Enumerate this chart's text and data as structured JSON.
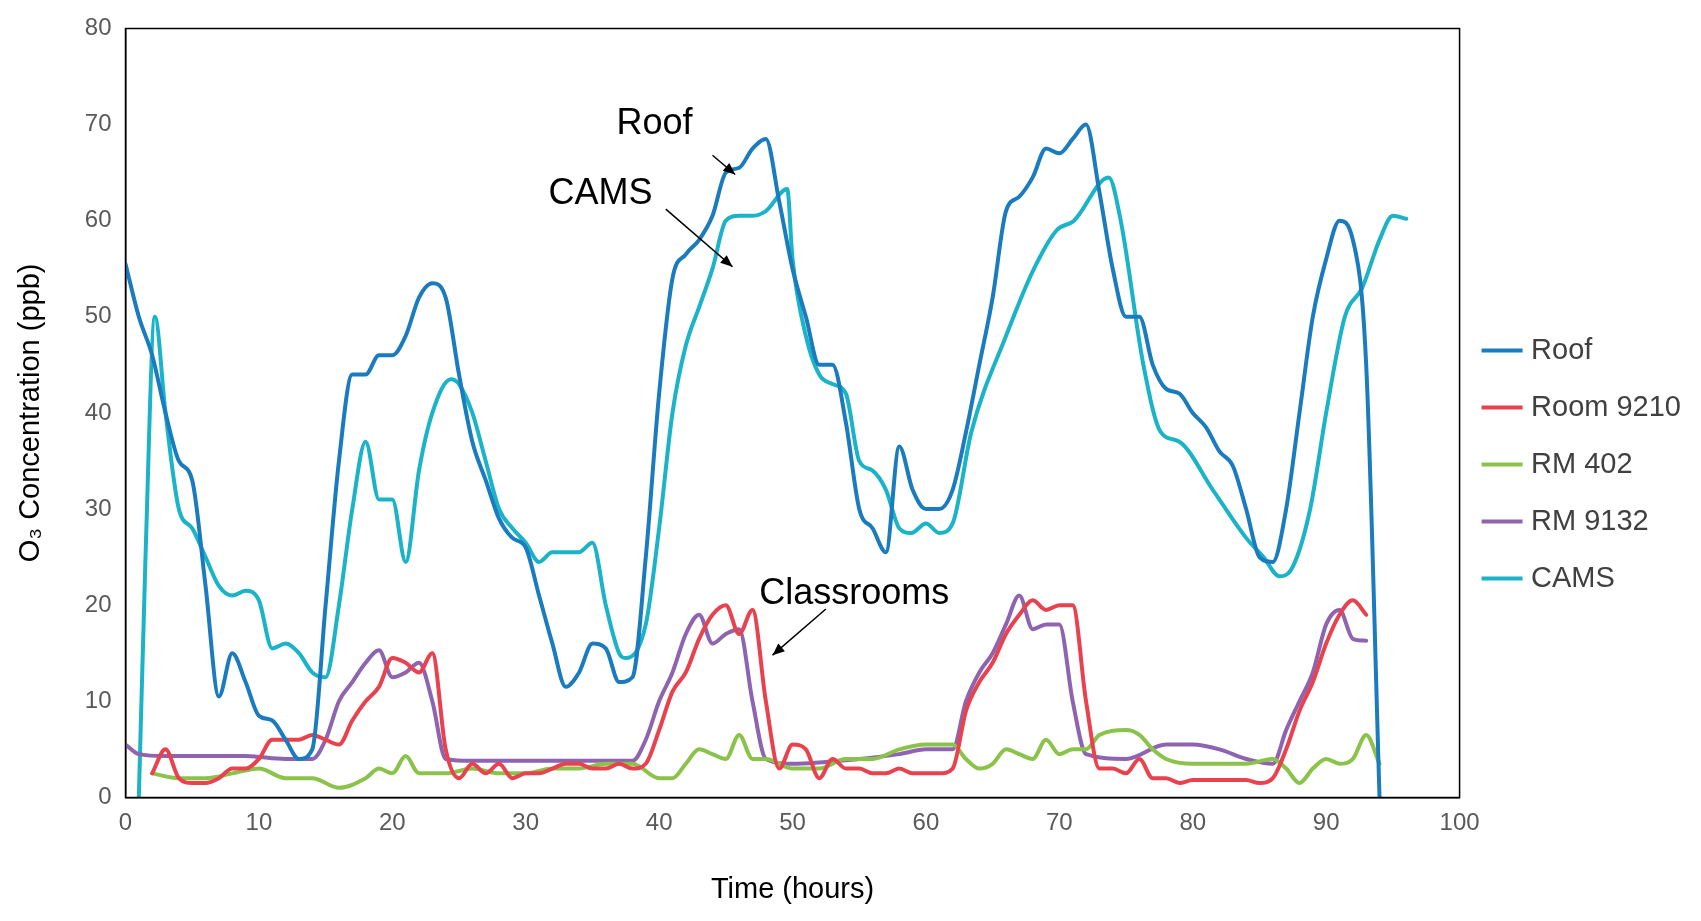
{
  "chart_data": {
    "type": "line",
    "xlabel": "Time (hours)",
    "ylabel": "O₃ Concentration (ppb)",
    "xlim": [
      0,
      100
    ],
    "xticks": [
      0,
      10,
      20,
      30,
      40,
      50,
      60,
      70,
      80,
      90,
      100
    ],
    "ylim": [
      0,
      80
    ],
    "yticks": [
      0,
      10,
      20,
      30,
      40,
      50,
      60,
      70,
      80
    ],
    "grid": false,
    "legend": "right",
    "marker": "none",
    "line_style": "solid",
    "annotations": [
      "Roof",
      "CAMS",
      "Classrooms"
    ],
    "series": [
      {
        "name": "Roof",
        "color": "#1a7bbf",
        "x": [
          0,
          1,
          2,
          3,
          4,
          5,
          6,
          7,
          8,
          9,
          10,
          11,
          12,
          13,
          14,
          15,
          16,
          17,
          18,
          19,
          20,
          21,
          22,
          23,
          24,
          25,
          26,
          27,
          28,
          29,
          30,
          31,
          32,
          33,
          34,
          35,
          36,
          37,
          38,
          39,
          40,
          41,
          42,
          43,
          44,
          45,
          46,
          47,
          48,
          49,
          50,
          51,
          52,
          53,
          54,
          55,
          56,
          57,
          58,
          59,
          60,
          61,
          62,
          63,
          64,
          65,
          66,
          67,
          68,
          69,
          70,
          71,
          72,
          73,
          74,
          75,
          76,
          77,
          78,
          79,
          80,
          81,
          82,
          83,
          84,
          85,
          86,
          87,
          88,
          89,
          90,
          91,
          92,
          93,
          94
        ],
        "values": [
          55.5,
          50,
          46,
          40,
          35,
          33,
          22,
          10.5,
          15,
          12,
          8.5,
          8,
          6,
          4,
          5,
          20,
          35,
          44,
          44,
          46,
          46,
          48,
          52,
          53.5,
          52,
          44,
          37,
          33,
          29,
          27,
          26,
          21,
          16,
          11.5,
          13,
          16,
          15.5,
          12,
          12.5,
          25,
          42,
          54,
          56.5,
          58,
          60.5,
          65,
          65.5,
          67.5,
          68.5,
          62,
          55,
          50,
          45,
          45,
          39,
          30,
          28,
          25.5,
          36.5,
          32,
          30,
          30,
          32,
          38,
          45,
          52,
          61,
          62.5,
          64.5,
          67.5,
          67,
          68.5,
          70,
          63,
          55,
          50,
          50,
          45,
          42.5,
          42,
          40,
          38.5,
          36,
          34.5,
          30,
          25,
          24.5,
          30,
          40,
          50,
          56,
          60,
          58,
          45,
          0
        ]
      },
      {
        "name": "Room 9210",
        "color": "#e8424f",
        "x": [
          2,
          3,
          4,
          5,
          6,
          7,
          8,
          9,
          10,
          11,
          12,
          13,
          14,
          15,
          16,
          17,
          18,
          19,
          20,
          21,
          22,
          23,
          24,
          25,
          26,
          27,
          28,
          29,
          30,
          31,
          32,
          33,
          34,
          35,
          36,
          37,
          38,
          39,
          40,
          41,
          42,
          43,
          44,
          45,
          46,
          47,
          48,
          49,
          50,
          51,
          52,
          53,
          54,
          55,
          56,
          57,
          58,
          59,
          60,
          61,
          62,
          63,
          64,
          65,
          66,
          67,
          68,
          69,
          70,
          71,
          72,
          73,
          74,
          75,
          76,
          77,
          78,
          79,
          80,
          81,
          82,
          83,
          84,
          85,
          86,
          87,
          88,
          89,
          90,
          91,
          92,
          93
        ],
        "values": [
          2.5,
          5,
          2,
          1.5,
          1.5,
          2,
          3,
          3,
          4,
          6,
          6,
          6,
          6.5,
          6,
          5.5,
          8,
          10,
          11.5,
          14.5,
          14,
          13,
          15,
          5,
          2,
          3.5,
          2.5,
          3.5,
          2,
          2.5,
          2.5,
          3,
          3.5,
          3.5,
          3,
          3,
          3.5,
          3,
          3.5,
          7,
          11,
          13,
          16.5,
          19,
          20,
          17,
          19.5,
          10,
          3,
          5.5,
          5,
          2,
          4,
          3,
          3,
          2.5,
          2.5,
          3,
          2.5,
          2.5,
          2.5,
          3,
          9,
          12,
          14,
          17,
          19,
          20.5,
          19.5,
          20,
          20,
          10,
          3,
          3,
          2.5,
          4,
          2,
          2,
          1.5,
          1.8,
          1.8,
          1.8,
          1.8,
          1.8,
          1.5,
          2,
          5,
          9,
          12,
          16,
          19,
          20.5,
          19
        ]
      },
      {
        "name": "RM 402",
        "color": "#8bc34a",
        "x": [
          2,
          4,
          6,
          8,
          10,
          12,
          14,
          16,
          18,
          19,
          20,
          21,
          22,
          24,
          26,
          28,
          30,
          32,
          34,
          36,
          38,
          40,
          41,
          42,
          43,
          44,
          45,
          46,
          47,
          48,
          50,
          52,
          54,
          56,
          58,
          60,
          62,
          63,
          64,
          65,
          66,
          67,
          68,
          69,
          70,
          71,
          72,
          73,
          75,
          76,
          77,
          78,
          80,
          82,
          84,
          86,
          87,
          88,
          89,
          90,
          91,
          92,
          93,
          94
        ],
        "values": [
          2.5,
          2,
          2,
          2.5,
          3,
          2,
          2,
          1,
          2,
          3,
          2.5,
          4.3,
          2.5,
          2.5,
          3,
          2.5,
          2.5,
          3,
          3,
          3.5,
          3.5,
          2,
          2,
          3.5,
          5,
          4.5,
          4,
          6.5,
          4,
          4,
          3,
          3,
          4,
          4,
          5,
          5.5,
          5.5,
          4,
          3,
          3.5,
          5,
          4.5,
          4,
          6,
          4.5,
          5,
          5,
          6.5,
          7,
          6.5,
          5,
          4,
          3.5,
          3.5,
          3.5,
          4,
          3,
          1.5,
          3,
          4,
          3.5,
          4,
          6.5,
          3.5
        ]
      },
      {
        "name": "RM 9132",
        "color": "#8e64b0",
        "x": [
          0,
          1,
          3,
          6,
          9,
          12,
          14,
          15,
          16,
          17,
          18,
          19,
          20,
          21,
          22,
          23,
          24,
          26,
          30,
          35,
          38,
          39,
          40,
          41,
          42,
          43,
          44,
          45,
          46,
          47,
          48,
          50,
          55,
          58,
          60,
          62,
          63,
          64,
          65,
          66,
          67,
          68,
          69,
          70,
          71,
          72,
          75,
          78,
          80,
          82,
          84,
          86,
          87,
          88,
          89,
          90,
          91,
          92,
          93
        ],
        "values": [
          5.5,
          4.5,
          4.3,
          4.3,
          4.3,
          4,
          4,
          6,
          10,
          12,
          14,
          15.3,
          12.5,
          13,
          14,
          10,
          4,
          3.8,
          3.8,
          3.8,
          3.8,
          6,
          10,
          13,
          17,
          19,
          16,
          17,
          17.5,
          10,
          4,
          3.5,
          4,
          4.5,
          5,
          5,
          10,
          13,
          15,
          18,
          21,
          17.5,
          18,
          18,
          10,
          4.5,
          4,
          5.5,
          5.5,
          5,
          4,
          3.5,
          7,
          10,
          13,
          18,
          19.5,
          16.5,
          16.3
        ]
      },
      {
        "name": "CAMS",
        "color": "#1ab3c8",
        "x": [
          1,
          1.5,
          2.2,
          3,
          4,
          5,
          6,
          7,
          8,
          9,
          10,
          11,
          12,
          13,
          14,
          15,
          16,
          17,
          18,
          19,
          20,
          21,
          22,
          23,
          24.4,
          25,
          26,
          27,
          28,
          29,
          30,
          31,
          32,
          33,
          34,
          35,
          36,
          37,
          37.5,
          39,
          40,
          41,
          42,
          43,
          44,
          45,
          46,
          47,
          48,
          49.6,
          50,
          51,
          52,
          53,
          54,
          55,
          56,
          57,
          58,
          58.9,
          60,
          61,
          62,
          63.4,
          66,
          68.1,
          69.8,
          71.1,
          73.7,
          74.6,
          76.3,
          77.6,
          79,
          81.5,
          84,
          85.3,
          86.5,
          87.5,
          88.8,
          90,
          91.4,
          92.7,
          94,
          95,
          96
        ],
        "values": [
          0,
          25,
          50,
          40,
          30,
          28,
          25,
          22,
          21,
          21.5,
          20.5,
          15.5,
          16,
          15,
          13,
          12.5,
          20,
          30,
          37,
          31,
          31,
          24.5,
          34,
          40,
          43.5,
          43,
          40,
          35,
          30,
          28,
          26.5,
          24.5,
          25.5,
          25.5,
          25.5,
          26.5,
          20,
          15,
          14.5,
          18,
          28,
          40,
          47,
          51,
          55,
          60,
          60.5,
          60.5,
          61,
          63.3,
          56,
          48,
          44,
          43,
          42,
          35,
          34,
          32,
          28,
          27.5,
          28.5,
          27.5,
          28.5,
          38,
          48,
          55,
          59,
          60,
          64.5,
          60,
          45,
          38,
          37,
          32,
          27,
          25,
          23,
          24,
          30,
          40,
          50,
          53,
          58,
          60.5,
          60.2
        ]
      }
    ]
  }
}
